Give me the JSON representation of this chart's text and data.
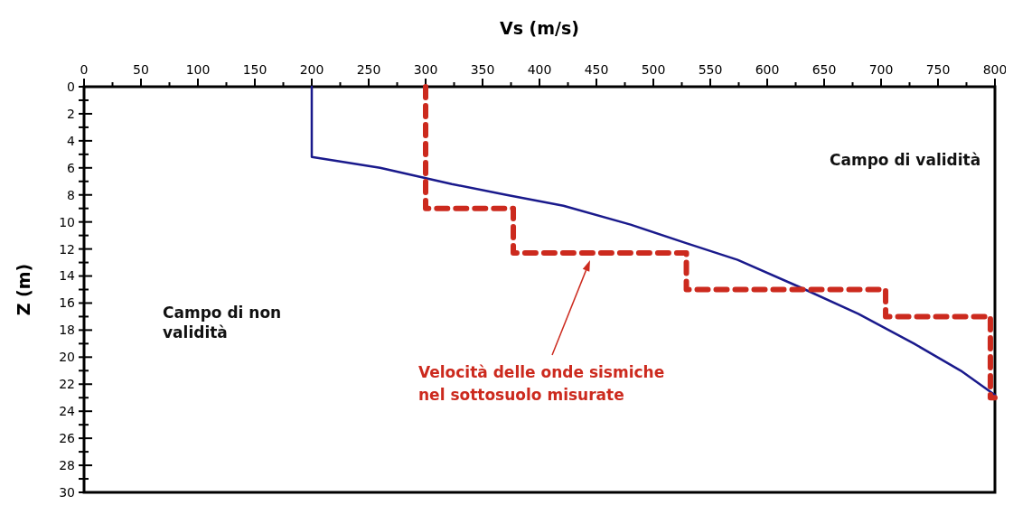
{
  "chart_data": {
    "type": "line",
    "xlabel": "Vs (m/s)",
    "ylabel": "Z (m)",
    "xlim": [
      0,
      800
    ],
    "ylim": [
      30,
      0
    ],
    "xticks": [
      0,
      {
        "value": 25,
        "label": null
      },
      50,
      {
        "value": 75,
        "label": null
      },
      100,
      {
        "value": 125,
        "label": null
      },
      150,
      {
        "value": 175,
        "label": null
      },
      200,
      {
        "value": 225,
        "label": null
      },
      250,
      {
        "value": 275,
        "label": null
      },
      300,
      {
        "value": 325,
        "label": null
      },
      350,
      {
        "value": 375,
        "label": null
      },
      400,
      {
        "value": 425,
        "label": null
      },
      450,
      {
        "value": 475,
        "label": null
      },
      500,
      {
        "value": 525,
        "label": null
      },
      550,
      {
        "value": 575,
        "label": null
      },
      600,
      {
        "value": 625,
        "label": null
      },
      650,
      {
        "value": 675,
        "label": null
      },
      700,
      {
        "value": 725,
        "label": null
      },
      750,
      {
        "value": 775,
        "label": null
      },
      800
    ],
    "yticks": [
      0,
      {
        "value": 1,
        "label": null
      },
      2,
      {
        "value": 3,
        "label": null
      },
      4,
      {
        "value": 5,
        "label": null
      },
      6,
      {
        "value": 7,
        "label": null
      },
      8,
      {
        "value": 9,
        "label": null
      },
      10,
      {
        "value": 11,
        "label": null
      },
      12,
      {
        "value": 13,
        "label": null
      },
      14,
      {
        "value": 15,
        "label": null
      },
      16,
      {
        "value": 17,
        "label": null
      },
      18,
      {
        "value": 19,
        "label": null
      },
      20,
      {
        "value": 21,
        "label": null
      },
      22,
      {
        "value": 23,
        "label": null
      },
      24,
      {
        "value": 25,
        "label": null
      },
      26,
      {
        "value": 27,
        "label": null
      },
      28,
      {
        "value": 29,
        "label": null
      },
      30
    ],
    "series": [
      {
        "color": "#1a1a8c",
        "line_style": "solid",
        "x": [
          200,
          200,
          260,
          323,
          371,
          421,
          480,
          530,
          574,
          628,
          680,
          729,
          770,
          800
        ],
        "values": [
          0,
          5.2,
          6.0,
          7.2,
          8.0,
          8.8,
          10.2,
          11.6,
          12.8,
          14.8,
          16.8,
          19.0,
          21.0,
          22.8
        ]
      },
      {
        "color": "#cc2a1e",
        "line_style": "dashed",
        "x": [
          300,
          300,
          377,
          377,
          529,
          529,
          704,
          704,
          796,
          796,
          800
        ],
        "values": [
          0,
          9,
          9,
          12.3,
          12.3,
          15,
          15,
          17,
          17,
          23,
          23
        ]
      }
    ],
    "annotations": [
      "Campo di validità",
      "Campo di non\nvalidità",
      "Velocità delle onde sismiche\nnel sottosuolo misurate"
    ],
    "grid": false
  }
}
